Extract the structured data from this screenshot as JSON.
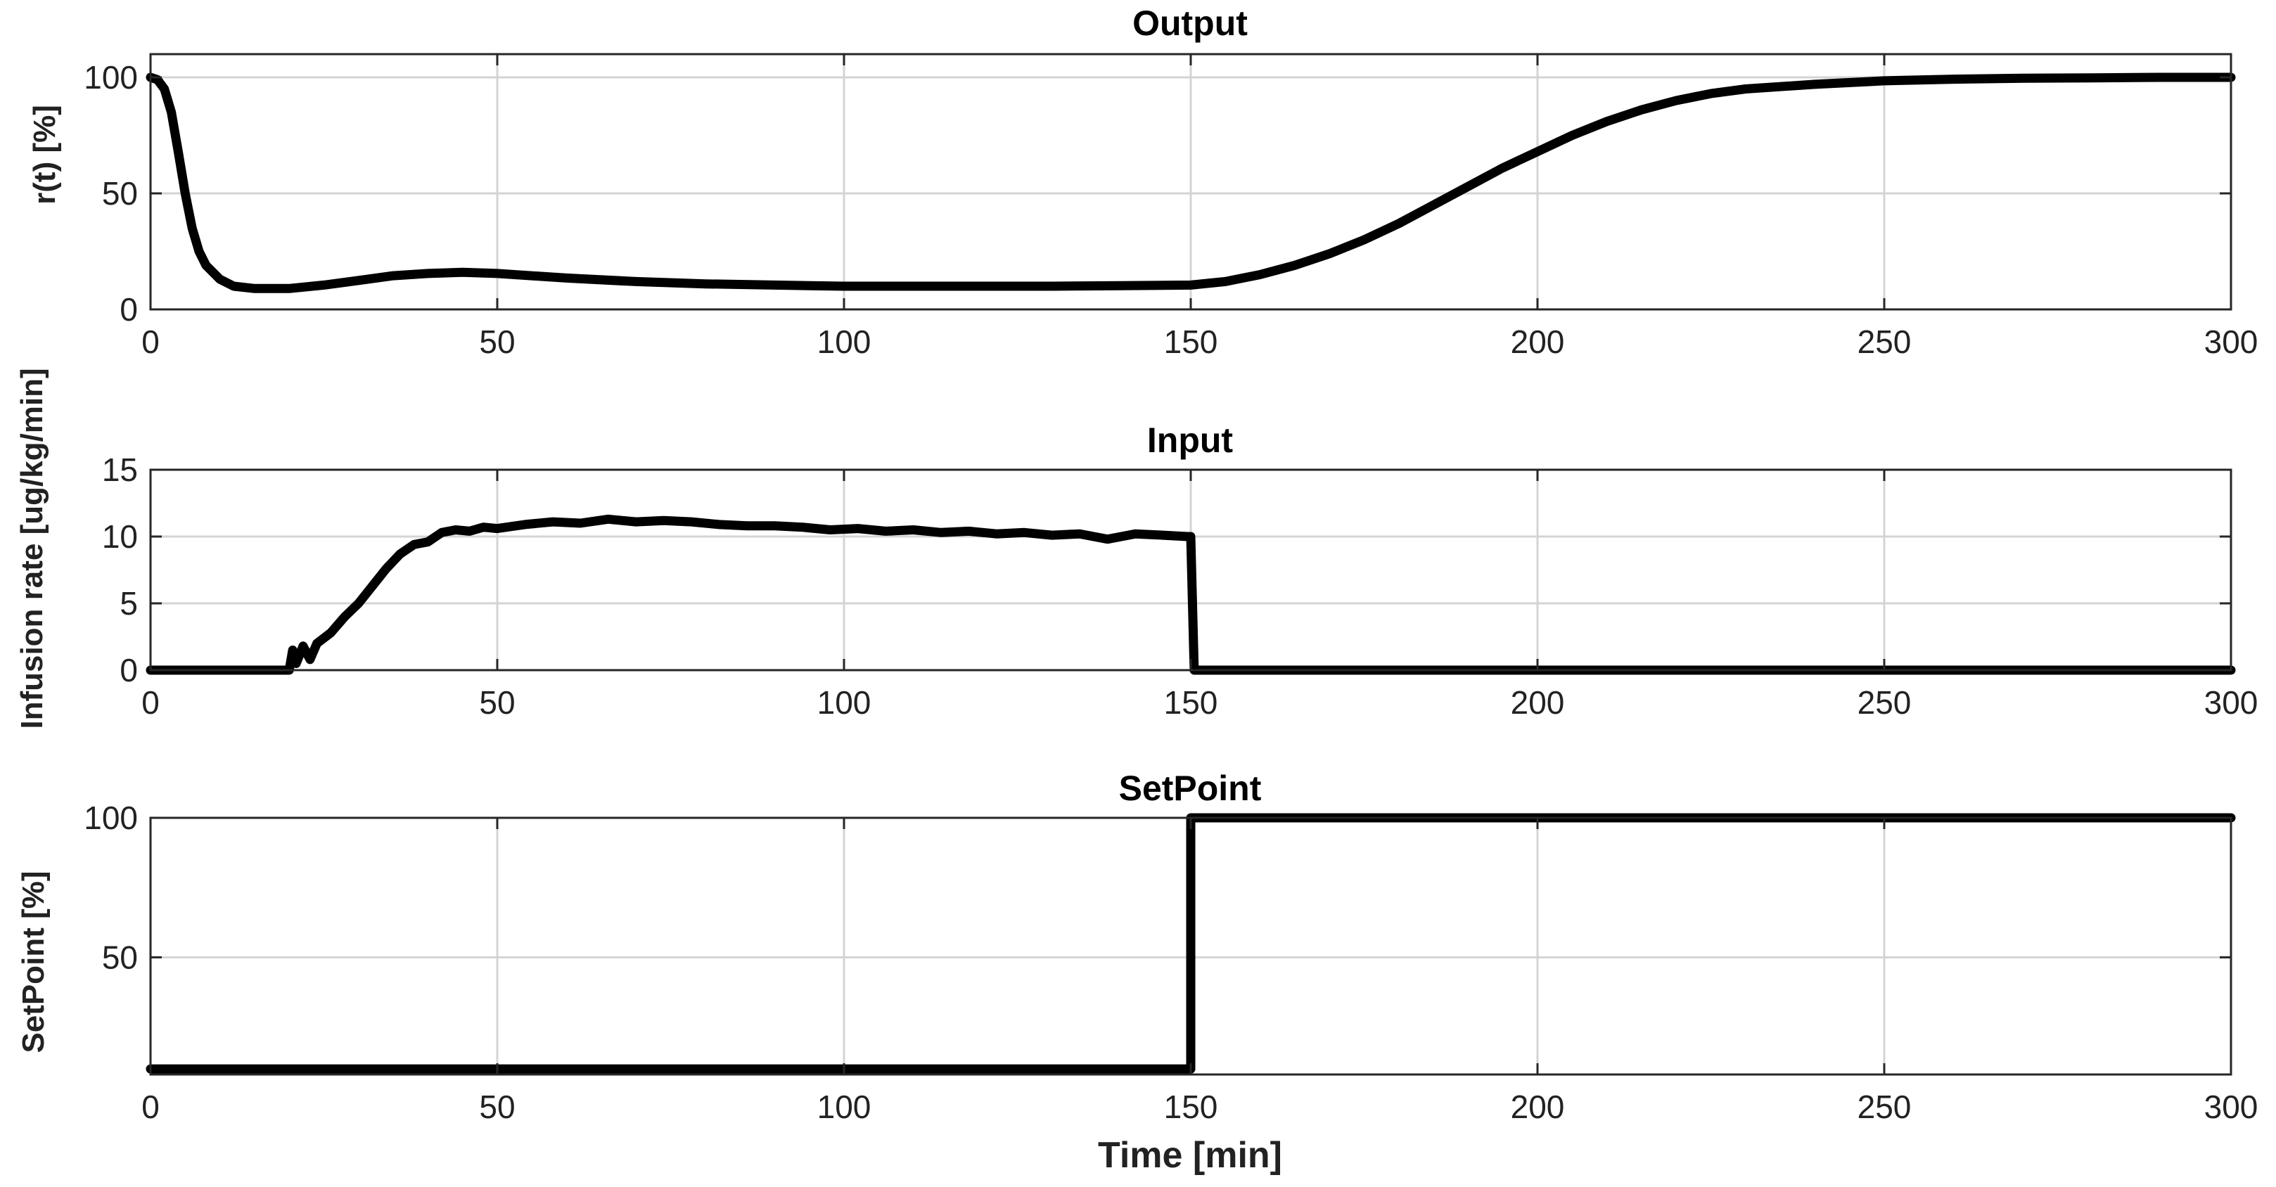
{
  "chart_data": [
    {
      "type": "line",
      "title": "Output",
      "xlabel": "",
      "ylabel": "r(t) [%]",
      "xlim": [
        0,
        300
      ],
      "ylim": [
        0,
        110
      ],
      "xticks": [
        0,
        50,
        100,
        150,
        200,
        250,
        300
      ],
      "yticks": [
        0,
        50,
        100
      ],
      "xtick_labels": [
        "0",
        "50",
        "100",
        "150",
        "200",
        "250",
        "300"
      ],
      "ytick_labels": [
        "0",
        "50",
        "100"
      ],
      "grid": true,
      "series": [
        {
          "name": "r(t)",
          "color": "#000000",
          "x": [
            0,
            1,
            2,
            3,
            4,
            5,
            6,
            7,
            8,
            10,
            12,
            15,
            18,
            20,
            25,
            30,
            35,
            40,
            45,
            50,
            60,
            70,
            80,
            90,
            100,
            110,
            120,
            130,
            140,
            150,
            155,
            160,
            165,
            170,
            175,
            180,
            185,
            190,
            195,
            200,
            205,
            210,
            215,
            220,
            225,
            230,
            240,
            250,
            260,
            270,
            280,
            290,
            300
          ],
          "y": [
            100,
            99,
            95,
            85,
            68,
            50,
            35,
            25,
            19,
            13,
            10,
            9,
            9,
            9,
            10.5,
            12.5,
            14.5,
            15.5,
            16,
            15.5,
            13.5,
            12,
            11,
            10.5,
            10,
            10,
            10,
            10,
            10.2,
            10.5,
            12,
            15,
            19,
            24,
            30,
            37,
            45,
            53,
            61,
            68,
            75,
            81,
            86,
            90,
            93,
            95,
            97,
            98.5,
            99.2,
            99.6,
            99.8,
            100,
            100
          ]
        }
      ]
    },
    {
      "type": "line",
      "title": "Input",
      "xlabel": "",
      "ylabel": "Infusion rate [ug/kg/min]",
      "xlim": [
        0,
        300
      ],
      "ylim": [
        0,
        15
      ],
      "xticks": [
        0,
        50,
        100,
        150,
        200,
        250,
        300
      ],
      "yticks": [
        0,
        5,
        10,
        15
      ],
      "xtick_labels": [
        "0",
        "50",
        "100",
        "150",
        "200",
        "250",
        "300"
      ],
      "ytick_labels": [
        "0",
        "5",
        "10",
        "15"
      ],
      "grid": true,
      "series": [
        {
          "name": "Infusion rate",
          "color": "#000000",
          "x": [
            0,
            20,
            20.5,
            21,
            22,
            23,
            24,
            26,
            28,
            30,
            32,
            34,
            36,
            38,
            40,
            42,
            44,
            46,
            48,
            50,
            54,
            58,
            62,
            66,
            70,
            74,
            78,
            82,
            86,
            90,
            94,
            98,
            102,
            106,
            110,
            114,
            118,
            122,
            126,
            130,
            134,
            138,
            142,
            146,
            149.5,
            150,
            150.5,
            200,
            250,
            300
          ],
          "y": [
            0,
            0,
            1.5,
            0.5,
            1.8,
            0.8,
            2,
            2.8,
            4,
            5,
            6.3,
            7.6,
            8.7,
            9.4,
            9.6,
            10.3,
            10.5,
            10.4,
            10.7,
            10.6,
            10.9,
            11.1,
            11,
            11.3,
            11.1,
            11.2,
            11.1,
            10.9,
            10.8,
            10.8,
            10.7,
            10.5,
            10.6,
            10.4,
            10.5,
            10.3,
            10.4,
            10.2,
            10.3,
            10.1,
            10.2,
            9.8,
            10.2,
            10.1,
            10,
            10,
            0,
            0,
            0,
            0
          ]
        }
      ]
    },
    {
      "type": "line",
      "title": "SetPoint",
      "xlabel": "Time [min]",
      "ylabel": "SetPoint [%]",
      "xlim": [
        0,
        300
      ],
      "ylim": [
        8,
        100
      ],
      "xticks": [
        0,
        50,
        100,
        150,
        200,
        250,
        300
      ],
      "yticks": [
        50,
        100
      ],
      "xtick_labels": [
        "0",
        "50",
        "100",
        "150",
        "200",
        "250",
        "300"
      ],
      "ytick_labels": [
        "50",
        "100"
      ],
      "grid": true,
      "series": [
        {
          "name": "SetPoint",
          "color": "#000000",
          "x": [
            0,
            150,
            150,
            300
          ],
          "y": [
            10,
            10,
            100,
            100
          ]
        }
      ]
    }
  ]
}
